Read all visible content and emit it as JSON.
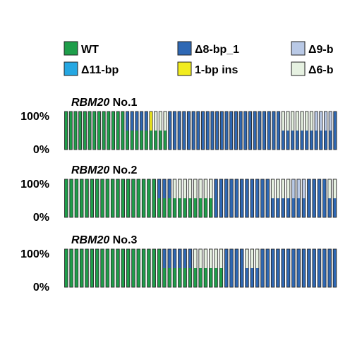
{
  "chart_data": {
    "type": "bar",
    "stacked": true,
    "legend": {
      "placement": "top",
      "entries": [
        {
          "key": "wt",
          "label": "WT",
          "color": "#1e9e4a"
        },
        {
          "key": "d8",
          "label": "Δ8-bp_1",
          "color": "#2e68b4"
        },
        {
          "key": "d9",
          "label": "Δ9-b",
          "color": "#b9c9e6"
        },
        {
          "key": "d11",
          "label": "Δ11-bp",
          "color": "#25a7e2"
        },
        {
          "key": "ins1",
          "label": "1-bp ins",
          "color": "#f2ec1e"
        },
        {
          "key": "d6",
          "label": "Δ6-b",
          "color": "#e6f1e1"
        }
      ]
    },
    "panels": [
      {
        "title_gene": "RBM20",
        "title_suffix": " No.1",
        "y_ticks": [
          "100%",
          "0%"
        ],
        "ylim": [
          0,
          100
        ],
        "groups": [
          {
            "count": 13,
            "segments": [
              {
                "key": "wt",
                "value": 100
              }
            ]
          },
          {
            "count": 5,
            "segments": [
              {
                "key": "wt",
                "value": 50
              },
              {
                "key": "d8",
                "value": 50
              }
            ]
          },
          {
            "count": 1,
            "segments": [
              {
                "key": "wt",
                "value": 50
              },
              {
                "key": "ins1",
                "value": 50
              }
            ]
          },
          {
            "count": 3,
            "segments": [
              {
                "key": "wt",
                "value": 50
              },
              {
                "key": "d6",
                "value": 50
              }
            ]
          },
          {
            "count": 24,
            "segments": [
              {
                "key": "d8",
                "value": 100
              }
            ]
          },
          {
            "count": 7,
            "segments": [
              {
                "key": "d8",
                "value": 50
              },
              {
                "key": "d6",
                "value": 50
              }
            ]
          },
          {
            "count": 4,
            "segments": [
              {
                "key": "d8",
                "value": 50
              },
              {
                "key": "d9",
                "value": 50
              }
            ]
          },
          {
            "count": 1,
            "segments": [
              {
                "key": "d8",
                "value": 100
              }
            ]
          }
        ]
      },
      {
        "title_gene": "RBM20",
        "title_suffix": " No.2",
        "y_ticks": [
          "100%",
          "0%"
        ],
        "ylim": [
          0,
          100
        ],
        "groups": [
          {
            "count": 18,
            "segments": [
              {
                "key": "wt",
                "value": 100
              }
            ]
          },
          {
            "count": 3,
            "segments": [
              {
                "key": "wt",
                "value": 50
              },
              {
                "key": "d8",
                "value": 50
              }
            ]
          },
          {
            "count": 8,
            "segments": [
              {
                "key": "wt",
                "value": 50
              },
              {
                "key": "d6",
                "value": 50
              }
            ]
          },
          {
            "count": 11,
            "segments": [
              {
                "key": "d8",
                "value": 100
              }
            ]
          },
          {
            "count": 4,
            "segments": [
              {
                "key": "d8",
                "value": 50
              },
              {
                "key": "d6",
                "value": 50
              }
            ]
          },
          {
            "count": 3,
            "segments": [
              {
                "key": "d8",
                "value": 50
              },
              {
                "key": "d9",
                "value": 50
              }
            ]
          },
          {
            "count": 4,
            "segments": [
              {
                "key": "d8",
                "value": 100
              }
            ]
          },
          {
            "count": 2,
            "segments": [
              {
                "key": "d8",
                "value": 50
              },
              {
                "key": "d6",
                "value": 50
              }
            ]
          }
        ]
      },
      {
        "title_gene": "RBM20",
        "title_suffix": " No.3",
        "y_ticks": [
          "100%",
          "0%"
        ],
        "ylim": [
          0,
          100
        ],
        "groups": [
          {
            "count": 19,
            "segments": [
              {
                "key": "wt",
                "value": 100
              }
            ]
          },
          {
            "count": 6,
            "segments": [
              {
                "key": "wt",
                "value": 50
              },
              {
                "key": "d8",
                "value": 50
              }
            ]
          },
          {
            "count": 6,
            "segments": [
              {
                "key": "wt",
                "value": 50
              },
              {
                "key": "d6",
                "value": 50
              }
            ]
          },
          {
            "count": 4,
            "segments": [
              {
                "key": "d8",
                "value": 100
              }
            ]
          },
          {
            "count": 3,
            "segments": [
              {
                "key": "d8",
                "value": 50
              },
              {
                "key": "d6",
                "value": 50
              }
            ]
          },
          {
            "count": 15,
            "segments": [
              {
                "key": "d8",
                "value": 100
              }
            ]
          }
        ]
      }
    ],
    "xlabel": "",
    "ylabel": "",
    "grid": false
  }
}
